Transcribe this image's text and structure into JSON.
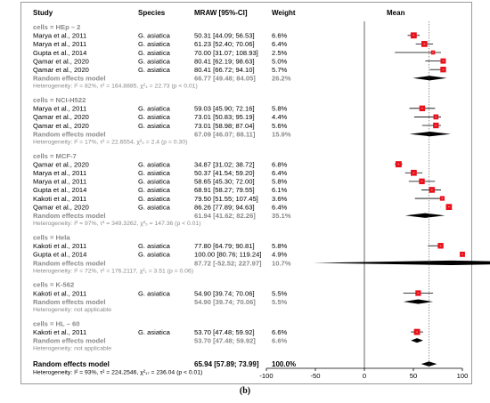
{
  "chart_data": {
    "type": "forest",
    "headers": {
      "study": "Study",
      "species": "Species",
      "effect": "MRAW [95%-CI]",
      "weight": "Weight",
      "plot": "Mean"
    },
    "groups": [
      {
        "label": "cells = HEp – 2",
        "studies": [
          {
            "study": "Marya et al., 2011",
            "species": "G. asiatica",
            "mean": 50.31,
            "lower": 44.09,
            "upper": 56.53,
            "ci_text": "50.31 [44.09; 56.53]",
            "weight": "6.6%"
          },
          {
            "study": "Marya et al., 2011",
            "species": "G. asiatica",
            "mean": 61.23,
            "lower": 52.4,
            "upper": 70.06,
            "ci_text": "61.23 [52.40; 70.06]",
            "weight": "6.4%"
          },
          {
            "study": "Gupta et al., 2014",
            "species": "G. asiatica",
            "mean": 70.0,
            "lower": 31.07,
            "upper": 108.93,
            "ci_text": "70.00 [31.07; 108.93]",
            "weight": "2.5%"
          },
          {
            "study": "Qamar et al., 2020",
            "species": "G. asiatica",
            "mean": 80.41,
            "lower": 62.19,
            "upper": 98.63,
            "ci_text": "80.41 [62.19; 98.63]",
            "weight": "5.0%"
          },
          {
            "study": "Qamar et al., 2020",
            "species": "G. asiatica",
            "mean": 80.41,
            "lower": 66.72,
            "upper": 94.1,
            "ci_text": "80.41 [66.72; 94.10]",
            "weight": "5.7%"
          }
        ],
        "random": {
          "label": "Random effects model",
          "mean": 66.77,
          "lower": 49.48,
          "upper": 84.05,
          "ci_text": "66.77 [49.48; 84.05]",
          "weight": "26.2%"
        },
        "heterogeneity": "Heterogeneity: I² = 82%, τ² = 164.8885, χ²₄ = 22.73 (p < 0.01)"
      },
      {
        "label": "cells = NCI-H522",
        "studies": [
          {
            "study": "Marya et al., 2011",
            "species": "G. asiatica",
            "mean": 59.03,
            "lower": 45.9,
            "upper": 72.16,
            "ci_text": "59.03 [45.90; 72.16]",
            "weight": "5.8%"
          },
          {
            "study": "Qamar et al., 2020",
            "species": "G. asiatica",
            "mean": 73.01,
            "lower": 50.83,
            "upper": 95.19,
            "ci_text": "73.01 [50.83; 95.19]",
            "weight": "4.4%"
          },
          {
            "study": "Qamar et al., 2020",
            "species": "G. asiatica",
            "mean": 73.01,
            "lower": 58.98,
            "upper": 87.04,
            "ci_text": "73.01 [58.98; 87.04]",
            "weight": "5.6%"
          }
        ],
        "random": {
          "label": "Random effects model",
          "mean": 67.09,
          "lower": 46.07,
          "upper": 88.11,
          "ci_text": "67.09 [46.07; 88.11]",
          "weight": "15.9%"
        },
        "heterogeneity": "Heterogeneity: I² = 17%, τ² = 22.6554, χ²₂ = 2.4 (p = 0.30)"
      },
      {
        "label": "cells = MCF-7",
        "studies": [
          {
            "study": "Qamar et al., 2020",
            "species": "G. asiatica",
            "mean": 34.87,
            "lower": 31.02,
            "upper": 38.72,
            "ci_text": "34.87 [31.02; 38.72]",
            "weight": "6.8%"
          },
          {
            "study": "Marya et al., 2011",
            "species": "G. asiatica",
            "mean": 50.37,
            "lower": 41.54,
            "upper": 59.2,
            "ci_text": "50.37 [41.54; 59.20]",
            "weight": "6.4%"
          },
          {
            "study": "Marya et al., 2011",
            "species": "G. asiatica",
            "mean": 58.65,
            "lower": 45.3,
            "upper": 72.0,
            "ci_text": "58.65 [45.30; 72.00]",
            "weight": "5.8%"
          },
          {
            "study": "Gupta et al., 2014",
            "species": "G. asiatica",
            "mean": 68.91,
            "lower": 58.27,
            "upper": 79.55,
            "ci_text": "68.91 [58.27; 79.55]",
            "weight": "6.1%"
          },
          {
            "study": "Kakoti et al., 2011",
            "species": "G. asiatica",
            "mean": 79.5,
            "lower": 51.55,
            "upper": 107.45,
            "ci_text": "79.50 [51.55; 107.45]",
            "weight": "3.6%"
          },
          {
            "study": "Qamar et al., 2020",
            "species": "G. asiatica",
            "mean": 86.26,
            "lower": 77.89,
            "upper": 94.63,
            "ci_text": "86.26 [77.89; 94.63]",
            "weight": "6.4%"
          }
        ],
        "random": {
          "label": "Random effects model",
          "mean": 61.94,
          "lower": 41.62,
          "upper": 82.26,
          "ci_text": "61.94 [41.62; 82.26]",
          "weight": "35.1%"
        },
        "heterogeneity": "Heterogeneity: I² = 97%, τ² = 349.3262, χ²₅ = 147.36 (p < 0.01)"
      },
      {
        "label": "cells = Hela",
        "studies": [
          {
            "study": "Kakoti et al., 2011",
            "species": "G. asiatica",
            "mean": 77.8,
            "lower": 64.79,
            "upper": 90.81,
            "ci_text": "77.80 [64.79; 90.81]",
            "weight": "5.8%"
          },
          {
            "study": "Gupta et al., 2014",
            "species": "G. asiatica",
            "mean": 100.0,
            "lower": 80.76,
            "upper": 119.24,
            "ci_text": "100.00 [80.76; 119.24]",
            "weight": "4.9%"
          }
        ],
        "random": {
          "label": "Random effects model",
          "mean": 87.72,
          "lower": -52.52,
          "upper": 227.97,
          "ci_text": "87.72 [-52.52; 227.97]",
          "weight": "10.7%"
        },
        "heterogeneity": "Heterogeneity: I² = 72%, τ² = 176.2117, χ²₁ = 3.51 (p = 0.06)"
      },
      {
        "label": "cells = K-562",
        "studies": [
          {
            "study": "Kakoti et al., 2011",
            "species": "G. asiatica",
            "mean": 54.9,
            "lower": 39.74,
            "upper": 70.06,
            "ci_text": "54.90 [39.74; 70.06]",
            "weight": "5.5%"
          }
        ],
        "random": {
          "label": "Random effects model",
          "mean": 54.9,
          "lower": 39.74,
          "upper": 70.06,
          "ci_text": "54.90 [39.74; 70.06]",
          "weight": "5.5%"
        },
        "heterogeneity": "Heterogeneity: not applicable"
      },
      {
        "label": "cells = HL – 60",
        "studies": [
          {
            "study": "Kakoti et al., 2011",
            "species": "G. asiatica",
            "mean": 53.7,
            "lower": 47.48,
            "upper": 59.92,
            "ci_text": "53.70 [47.48; 59.92]",
            "weight": "6.6%"
          }
        ],
        "random": {
          "label": "Random effects model",
          "mean": 53.7,
          "lower": 47.48,
          "upper": 59.92,
          "ci_text": "53.70 [47.48; 59.92]",
          "weight": "6.6%"
        },
        "heterogeneity": "Heterogeneity: not applicable"
      }
    ],
    "overall": {
      "label": "Random effects model",
      "mean": 65.94,
      "lower": 57.89,
      "upper": 73.99,
      "ci_text": "65.94 [57.89; 73.99]",
      "weight": "100.0%",
      "heterogeneity": "Heterogeneity: I² = 93%, τ² = 224.2546, χ²₁₇ = 236.04 (p < 0.01)"
    },
    "x_axis": {
      "ticks": [
        -100,
        -50,
        0,
        50,
        100
      ],
      "tick_labels": [
        "-100",
        "-50",
        "0",
        "50",
        "100"
      ],
      "xlim": [
        -100,
        100
      ],
      "reference_line": 0,
      "summary_line": 65.94
    },
    "colors": {
      "box": "#e8101a",
      "diamond": "#000000",
      "grey_text": "#8a8a8a",
      "summary_line": "#555555"
    }
  },
  "caption": "(b)"
}
